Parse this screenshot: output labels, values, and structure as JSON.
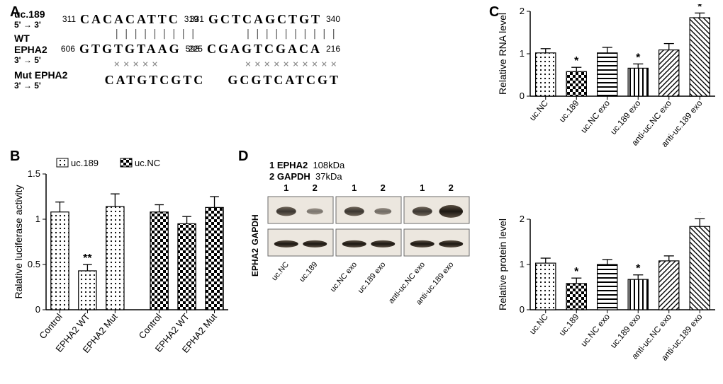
{
  "panelA": {
    "uc189": {
      "label": "uc.189",
      "dir": "5' → 3'",
      "seq1": {
        "l": "311",
        "s": "CACACATTC",
        "r": "319"
      },
      "seq2": {
        "l": "331",
        "s": "GCTCAGCTGT",
        "r": "340"
      }
    },
    "wt": {
      "label": "WT  EPHA2",
      "dir": "3' → 5'",
      "seq1": {
        "l": "606",
        "s": "GTGTGTAAG",
        "r": "598"
      },
      "seq2": {
        "l": "225",
        "s": "CGAGTCGACA",
        "r": "216"
      }
    },
    "mut": {
      "label": "Mut EPHA2",
      "dir": "3' → 5'",
      "seq1": {
        "s": "CATGTCGTC"
      },
      "seq2": {
        "s": "GCGTCATCGT"
      }
    },
    "pair1": "|||||||||",
    "pair2": "||||||||||",
    "x1": "×××××",
    "x2": "××××××××××"
  },
  "panelB": {
    "ylabel": "Ralative luciferase activity",
    "legend": [
      "uc.189",
      "uc.NC"
    ],
    "ylim": [
      0,
      1.5
    ],
    "yticks": [
      0,
      0.5,
      1.0,
      1.5
    ],
    "categories": [
      "Control",
      "EPHA2 WT",
      "EPHA2 Mut",
      "Control",
      "EPHA2 WT",
      "EPHA2 Mut"
    ],
    "values": [
      1.08,
      0.43,
      1.14,
      1.08,
      0.95,
      1.13
    ],
    "errs": [
      0.11,
      0.07,
      0.14,
      0.08,
      0.08,
      0.12
    ],
    "patterns": [
      "dots",
      "dots",
      "dots",
      "check",
      "check",
      "check"
    ],
    "sig": [
      null,
      "**",
      null,
      null,
      null,
      null
    ],
    "bar_width": 0.65,
    "colors": {
      "axis": "#000",
      "bar_stroke": "#000"
    }
  },
  "panelC_rna": {
    "ylabel": "Relative RNA level",
    "ylim": [
      0,
      2
    ],
    "yticks": [
      0,
      1,
      2
    ],
    "categories": [
      "uc.NC",
      "uc.189",
      "uc.NC exo",
      "uc.189 exo",
      "anti-uc.NC exo",
      "anti-uc.189 exo"
    ],
    "values": [
      1.02,
      0.58,
      1.02,
      0.66,
      1.09,
      1.85
    ],
    "errs": [
      0.1,
      0.1,
      0.13,
      0.1,
      0.15,
      0.11
    ],
    "patterns": [
      "dots",
      "check",
      "hstripe",
      "vstripe",
      "diagL",
      "diagR"
    ],
    "sig": [
      null,
      "*",
      null,
      "*",
      null,
      "*"
    ]
  },
  "panelC_prot": {
    "ylabel": "Relative protein level",
    "ylim": [
      0,
      2
    ],
    "yticks": [
      0,
      1,
      2
    ],
    "categories": [
      "uc.NC",
      "uc.189",
      "uc.NC exo",
      "uc.189 exo",
      "anti-uc.NC exo",
      "anti-uc.189 exo"
    ],
    "values": [
      1.03,
      0.58,
      1.0,
      0.67,
      1.08,
      1.84
    ],
    "errs": [
      0.11,
      0.12,
      0.11,
      0.1,
      0.11,
      0.17
    ],
    "patterns": [
      "dots",
      "check",
      "hstripe",
      "vstripe",
      "diagL",
      "diagR"
    ],
    "sig": [
      null,
      "*",
      null,
      "*",
      null,
      "*"
    ]
  },
  "panelD": {
    "header": {
      "one": "1 EPHA2",
      "two": "2 GAPDH",
      "w1": "108kDa",
      "w2": "37kDa"
    },
    "row_labels": [
      "EPHA2",
      "GAPDH"
    ],
    "groups": [
      {
        "lanes": [
          "uc.NC",
          "uc.189"
        ]
      },
      {
        "lanes": [
          "exo",
          "exo",
          "uc.NC exo",
          "uc.189 exo"
        ]
      },
      {
        "lanes": [
          "anti-uc.NC exo",
          "anti-uc.189 exo"
        ]
      }
    ],
    "epha2_intensity": [
      1.0,
      0.4,
      1.0,
      0.5,
      1.0,
      1.7
    ],
    "gapdh_intensity": [
      1.0,
      1.0,
      1.0,
      1.0,
      1.0,
      1.0
    ]
  },
  "labels": {
    "A": "A",
    "B": "B",
    "C": "C",
    "D": "D"
  }
}
